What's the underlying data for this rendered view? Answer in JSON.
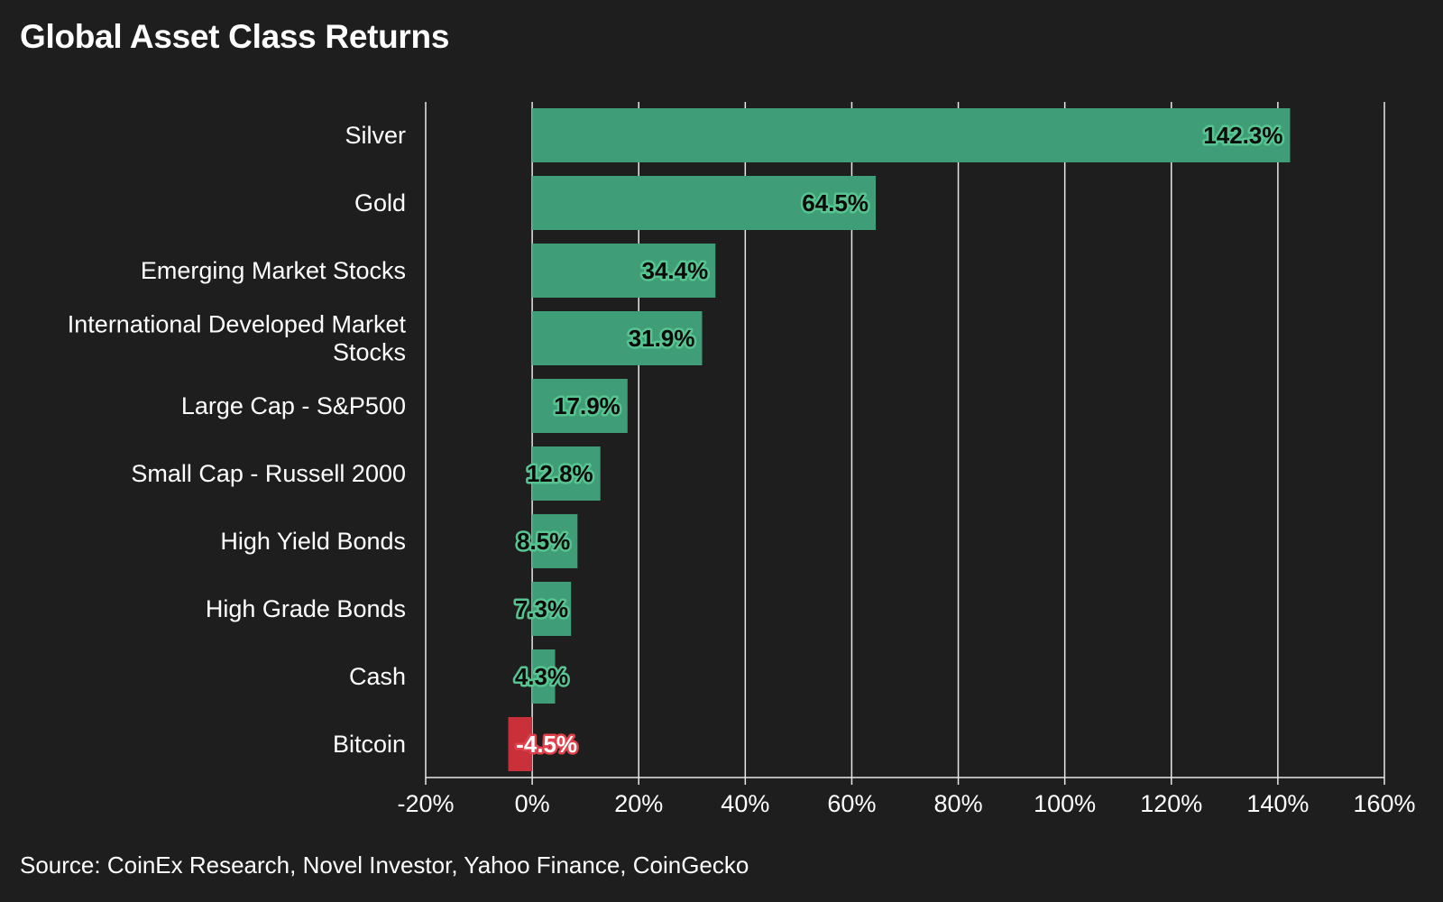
{
  "title": "Global Asset Class Returns",
  "source": "Source: CoinEx Research, Novel Investor, Yahoo Finance, CoinGecko",
  "colors": {
    "background": "#1e1e1e",
    "positive_bar": "#3f9e78",
    "positive_label_glow": "#57c491",
    "negative_bar": "#c9303a",
    "negative_label_glow": "#e0414b",
    "grid": "#e8e8e8",
    "text": "#ffffff"
  },
  "chart_data": {
    "type": "bar",
    "orientation": "horizontal",
    "title": "Global Asset Class Returns",
    "xlabel": "",
    "ylabel": "",
    "categories": [
      "Silver",
      "Gold",
      "Emerging Market Stocks",
      "International Developed Market Stocks",
      "Large Cap - S&P500",
      "Small Cap - Russell 2000",
      "High Yield Bonds",
      "High Grade Bonds",
      "Cash",
      "Bitcoin"
    ],
    "category_label_lines": [
      [
        "Silver"
      ],
      [
        "Gold"
      ],
      [
        "Emerging Market Stocks"
      ],
      [
        "International Developed Market",
        "Stocks"
      ],
      [
        "Large Cap - S&P500"
      ],
      [
        "Small Cap - Russell 2000"
      ],
      [
        "High Yield Bonds"
      ],
      [
        "High Grade Bonds"
      ],
      [
        "Cash"
      ],
      [
        "Bitcoin"
      ]
    ],
    "values": [
      142.3,
      64.5,
      34.4,
      31.9,
      17.9,
      12.8,
      8.5,
      7.3,
      4.3,
      -4.5
    ],
    "value_labels": [
      "142.3%",
      "64.5%",
      "34.4%",
      "31.9%",
      "17.9%",
      "12.8%",
      "8.5%",
      "7.3%",
      "4.3%",
      "-4.5%"
    ],
    "xlim": [
      -20,
      160
    ],
    "xticks": [
      -20,
      0,
      20,
      40,
      60,
      80,
      100,
      120,
      140,
      160
    ],
    "xtick_labels": [
      "-20%",
      "0%",
      "20%",
      "40%",
      "60%",
      "80%",
      "100%",
      "120%",
      "140%",
      "160%"
    ],
    "grid": "vertical",
    "legend": "none"
  }
}
